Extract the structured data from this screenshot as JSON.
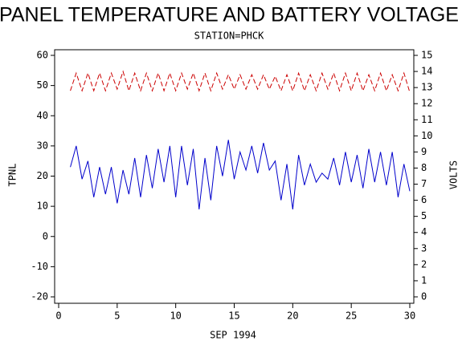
{
  "chart_data": {
    "type": "line",
    "title": "PANEL TEMPERATURE AND BATTERY VOLTAGE",
    "subtitle": "STATION=PHCK",
    "x_label": "SEP 1994",
    "y_label": "TPNL",
    "y2_label": "VOLTS",
    "x": [
      1,
      1.5,
      2,
      2.5,
      3,
      3.5,
      4,
      4.5,
      5,
      5.5,
      6,
      6.5,
      7,
      7.5,
      8,
      8.5,
      9,
      9.5,
      10,
      10.5,
      11,
      11.5,
      12,
      12.5,
      13,
      13.5,
      14,
      14.5,
      15,
      15.5,
      16,
      16.5,
      17,
      17.5,
      18,
      18.5,
      19,
      19.5,
      20,
      20.5,
      21,
      21.5,
      22,
      22.5,
      23,
      23.5,
      24,
      24.5,
      25,
      25.5,
      26,
      26.5,
      27,
      27.5,
      28,
      28.5,
      29,
      29.5,
      30
    ],
    "series": [
      {
        "name": "TPNL",
        "color": "#0000cc",
        "axis": "y",
        "dashed": false,
        "values": [
          23,
          30,
          19,
          25,
          13,
          23,
          14,
          23,
          11,
          22,
          14,
          26,
          13,
          27,
          16,
          29,
          18,
          30,
          13,
          30,
          17,
          29,
          9,
          26,
          12,
          30,
          20,
          32,
          19,
          28,
          22,
          30,
          21,
          31,
          22,
          25,
          12,
          24,
          9,
          27,
          17,
          24,
          18,
          21,
          19,
          26,
          17,
          28,
          18,
          27,
          16,
          29,
          18,
          28,
          17,
          28,
          13,
          24,
          15
        ]
      },
      {
        "name": "VOLTS",
        "color": "#cc0000",
        "axis": "y2",
        "dashed": true,
        "values": [
          12.8,
          13.9,
          12.8,
          13.9,
          12.8,
          13.9,
          12.8,
          13.9,
          12.9,
          14.0,
          12.8,
          13.9,
          12.8,
          13.9,
          12.8,
          13.9,
          12.8,
          13.9,
          12.8,
          13.9,
          12.9,
          13.9,
          12.8,
          13.9,
          12.8,
          13.9,
          12.9,
          13.8,
          12.9,
          13.8,
          12.9,
          13.8,
          12.9,
          13.8,
          12.9,
          13.7,
          12.8,
          13.8,
          12.8,
          13.9,
          12.8,
          13.8,
          12.8,
          13.9,
          12.9,
          13.9,
          12.8,
          13.9,
          12.8,
          13.9,
          12.8,
          13.8,
          12.8,
          13.9,
          12.8,
          13.8,
          12.8,
          13.9,
          12.7
        ]
      }
    ],
    "xlim": [
      0,
      30
    ],
    "xticks": [
      0,
      5,
      10,
      15,
      20,
      25,
      30
    ],
    "ylim": [
      -20,
      60
    ],
    "yticks": [
      -20,
      -10,
      0,
      10,
      20,
      30,
      40,
      50,
      60
    ],
    "y2lim": [
      0,
      15
    ],
    "y2ticks": [
      0,
      1,
      2,
      3,
      4,
      5,
      6,
      7,
      8,
      9,
      10,
      11,
      12,
      13,
      14,
      15
    ]
  }
}
